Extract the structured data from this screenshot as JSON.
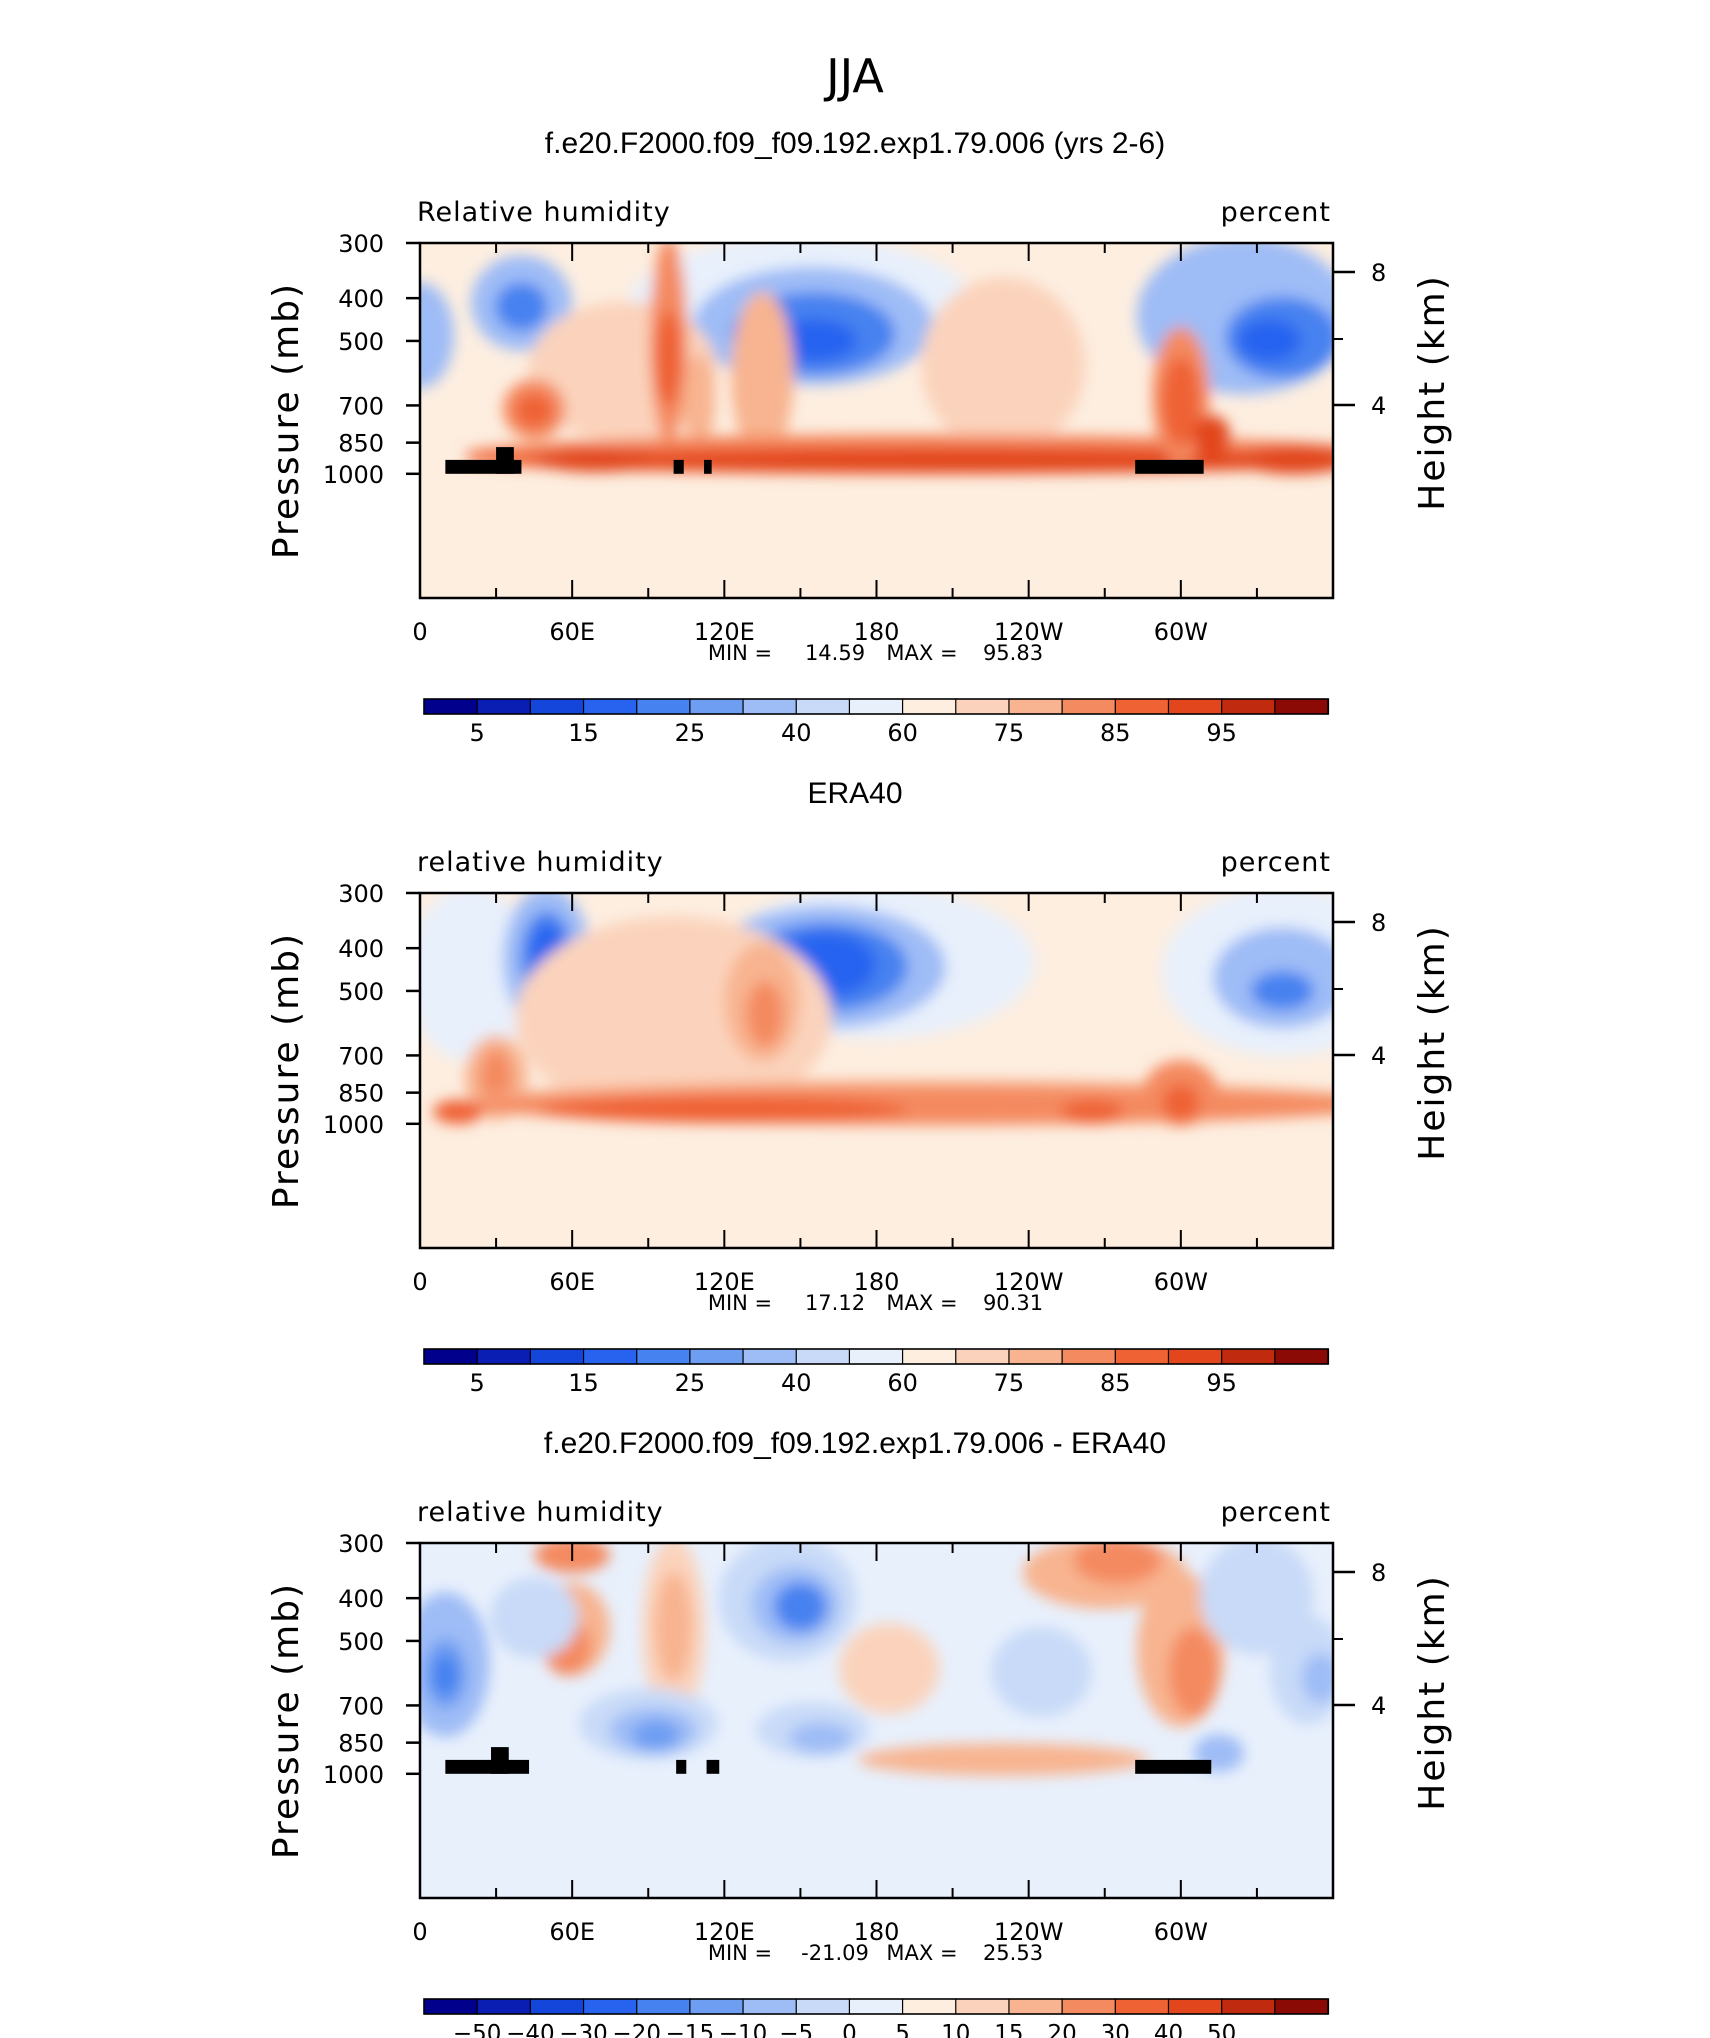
{
  "figure": {
    "title": "JJA"
  },
  "colorbar_levels_abs": [
    "5",
    "10",
    "15",
    "20",
    "25",
    "30",
    "40",
    "50",
    "60",
    "65",
    "75",
    "80",
    "85",
    "90",
    "95"
  ],
  "colorbar_labels_abs": [
    "5",
    "15",
    "25",
    "40",
    "60",
    "75",
    "85",
    "95"
  ],
  "colorbar_levels_diff": [
    "-50",
    "-40",
    "-30",
    "-20",
    "-15",
    "-10",
    "-5",
    "0",
    "5",
    "10",
    "15",
    "20",
    "30",
    "40",
    "50"
  ],
  "colorbar_labels_diff": [
    "-50",
    "-40",
    "-30",
    "-20",
    "-15",
    "-10",
    "-5",
    "0",
    "5",
    "10",
    "15",
    "20",
    "30",
    "40",
    "50"
  ],
  "palette": [
    "#00008c",
    "#0a1eb4",
    "#1446dc",
    "#2863f0",
    "#4682f0",
    "#6e9ef2",
    "#9ebcf6",
    "#c8daf8",
    "#e8f0fc",
    "#fdeee0",
    "#fbd3bc",
    "#f8b490",
    "#f48a60",
    "#ef6234",
    "#e2461c",
    "#c02a0e",
    "#8c0a06"
  ],
  "chart_data": [
    {
      "type": "heatmap",
      "title": "f.e20.F2000.f09_f09.192.exp1.79.006 (yrs 2-6)",
      "left_label": "Relative humidity",
      "right_label": "percent",
      "xlabel": "",
      "ylabel": "Pressure (mb)",
      "ylabel_right": "Height (km)",
      "xticks": [
        "0",
        "60E",
        "120E",
        "180",
        "120W",
        "60W"
      ],
      "yticks": [
        "300",
        "400",
        "500",
        "700",
        "850",
        "1000"
      ],
      "yticks_right": [
        "8",
        "4"
      ],
      "ylim": [
        1000,
        300
      ],
      "stats": {
        "min_label": "MIN =",
        "min": "14.59",
        "max_label": "MAX =",
        "max": "95.83"
      }
    },
    {
      "type": "heatmap",
      "title": "ERA40",
      "left_label": "relative humidity",
      "right_label": "percent",
      "xlabel": "",
      "ylabel": "Pressure (mb)",
      "ylabel_right": "Height (km)",
      "xticks": [
        "0",
        "60E",
        "120E",
        "180",
        "120W",
        "60W"
      ],
      "yticks": [
        "300",
        "400",
        "500",
        "700",
        "850",
        "1000"
      ],
      "yticks_right": [
        "8",
        "4"
      ],
      "ylim": [
        1000,
        300
      ],
      "stats": {
        "min_label": "MIN =",
        "min": "17.12",
        "max_label": "MAX =",
        "max": "90.31"
      }
    },
    {
      "type": "heatmap",
      "title": "f.e20.F2000.f09_f09.192.exp1.79.006 - ERA40",
      "left_label": "relative humidity",
      "right_label": "percent",
      "xlabel": "",
      "ylabel": "Pressure (mb)",
      "ylabel_right": "Height (km)",
      "xticks": [
        "0",
        "60E",
        "120E",
        "180",
        "120W",
        "60W"
      ],
      "yticks": [
        "300",
        "400",
        "500",
        "700",
        "850",
        "1000"
      ],
      "yticks_right": [
        "8",
        "4"
      ],
      "ylim": [
        1000,
        300
      ],
      "stats": {
        "min_label": "MIN =",
        "min": "-21.09",
        "max_label": "MAX =",
        "max": "25.53"
      }
    }
  ]
}
